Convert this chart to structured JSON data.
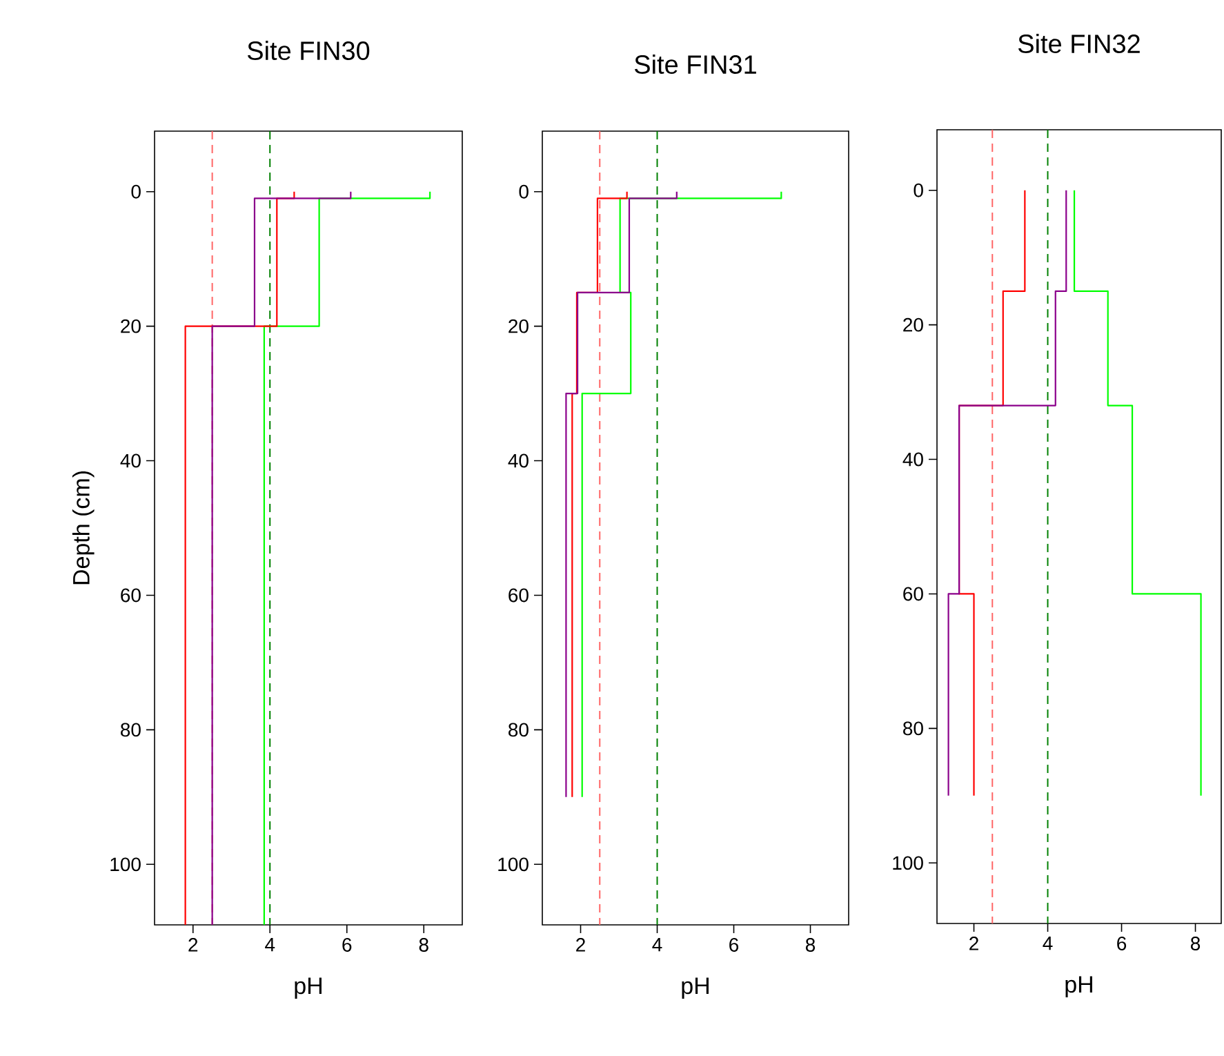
{
  "chart_data": [
    {
      "type": "line",
      "title": "Site FIN30",
      "xlabel": "pH",
      "ylabel": "Depth (cm)",
      "xlim": [
        1,
        9
      ],
      "ylim": [
        109,
        -9
      ],
      "xticks": [
        2,
        4,
        6,
        8
      ],
      "yticks": [
        0,
        20,
        40,
        60,
        80,
        100
      ],
      "ref_lines": [
        {
          "axis": "x",
          "value": 2.5,
          "color": "#ff6666",
          "line_style": "dashed"
        },
        {
          "axis": "x",
          "value": 4,
          "color": "#008000",
          "line_style": "dashed"
        }
      ],
      "series": [
        {
          "color": "#00ff00",
          "x": [
            8.16,
            8.16,
            5.28,
            5.28,
            3.85,
            3.85
          ],
          "values": [
            0,
            1,
            1,
            20,
            20,
            109
          ]
        },
        {
          "color": "#ff0000",
          "x": [
            4.63,
            4.63,
            4.18,
            4.18,
            1.8,
            1.8
          ],
          "values": [
            0,
            1,
            1,
            20,
            20,
            109
          ]
        },
        {
          "color": "#8b008b",
          "x": [
            6.1,
            6.1,
            3.6,
            3.6,
            2.5,
            2.5
          ],
          "values": [
            0,
            1,
            1,
            20,
            20,
            109
          ]
        }
      ]
    },
    {
      "type": "line",
      "title": "Site FIN31",
      "xlabel": "pH",
      "xlim": [
        1,
        9
      ],
      "ylim": [
        109,
        -9
      ],
      "xticks": [
        2,
        4,
        6,
        8
      ],
      "yticks": [
        0,
        20,
        40,
        60,
        80,
        100
      ],
      "ref_lines": [
        {
          "axis": "x",
          "value": 2.5,
          "color": "#ff6666",
          "line_style": "dashed"
        },
        {
          "axis": "x",
          "value": 4,
          "color": "#008000",
          "line_style": "dashed"
        }
      ],
      "series": [
        {
          "color": "#00ff00",
          "x": [
            7.24,
            7.24,
            3.03,
            3.03,
            3.31,
            3.31,
            2.04,
            2.04
          ],
          "values": [
            0,
            1,
            1,
            15,
            15,
            30,
            30,
            90
          ]
        },
        {
          "color": "#ff0000",
          "x": [
            3.21,
            3.21,
            2.44,
            2.44,
            1.9,
            1.9,
            1.78,
            1.78
          ],
          "values": [
            0,
            1,
            1,
            15,
            15,
            30,
            30,
            90
          ]
        },
        {
          "color": "#8b008b",
          "x": [
            4.51,
            4.51,
            3.27,
            3.27,
            1.92,
            1.92,
            1.62,
            1.62
          ],
          "values": [
            0,
            1,
            1,
            15,
            15,
            30,
            30,
            90
          ]
        }
      ]
    },
    {
      "type": "line",
      "title": "Site FIN32",
      "xlabel": "pH",
      "xlim": [
        1,
        8.7
      ],
      "ylim": [
        109,
        -9
      ],
      "xticks": [
        2,
        4,
        6,
        8
      ],
      "yticks": [
        0,
        20,
        40,
        60,
        80,
        100
      ],
      "ref_lines": [
        {
          "axis": "x",
          "value": 2.5,
          "color": "#ff6666",
          "line_style": "dashed"
        },
        {
          "axis": "x",
          "value": 4,
          "color": "#008000",
          "line_style": "dashed"
        }
      ],
      "series": [
        {
          "color": "#00ff00",
          "x": [
            4.72,
            4.72,
            5.63,
            5.63,
            6.29,
            6.29,
            8.15,
            8.15
          ],
          "values": [
            0,
            15,
            15,
            32,
            32,
            60,
            60,
            90
          ]
        },
        {
          "color": "#ff0000",
          "x": [
            3.38,
            3.38,
            2.79,
            2.79,
            1.6,
            1.6,
            2.0,
            2.0
          ],
          "values": [
            0,
            15,
            15,
            32,
            32,
            60,
            60,
            90
          ]
        },
        {
          "color": "#8b008b",
          "x": [
            4.5,
            4.5,
            4.21,
            4.21,
            1.6,
            1.6,
            1.31,
            1.31
          ],
          "values": [
            0,
            15,
            15,
            32,
            32,
            60,
            60,
            90
          ]
        }
      ]
    }
  ]
}
